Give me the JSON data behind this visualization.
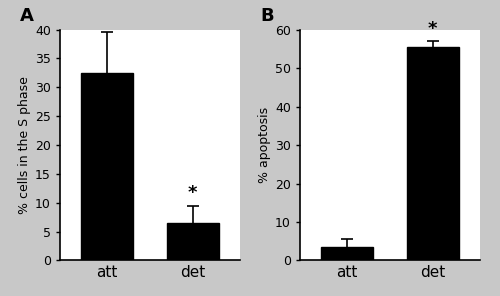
{
  "panel_A": {
    "categories": [
      "att",
      "det"
    ],
    "values": [
      32.5,
      6.5
    ],
    "errors": [
      7.0,
      3.0
    ],
    "ylabel": "% cells in the S phase",
    "ylim": [
      0,
      40
    ],
    "yticks": [
      0,
      5,
      10,
      15,
      20,
      25,
      30,
      35,
      40
    ],
    "label": "A",
    "significance": [
      false,
      true
    ],
    "bar_color": "#000000",
    "error_color": "#000000"
  },
  "panel_B": {
    "categories": [
      "att",
      "det"
    ],
    "values": [
      3.5,
      55.5
    ],
    "errors": [
      2.0,
      1.5
    ],
    "ylabel": "% apoptosis",
    "ylim": [
      0,
      60
    ],
    "yticks": [
      0,
      10,
      20,
      30,
      40,
      50,
      60
    ],
    "label": "B",
    "significance": [
      false,
      true
    ],
    "bar_color": "#000000",
    "error_color": "#000000"
  },
  "background_color": "#c8c8c8",
  "panel_bg_color": "#ffffff",
  "bar_width": 0.6,
  "tick_fontsize": 9,
  "label_fontsize": 9,
  "panel_label_fontsize": 13
}
